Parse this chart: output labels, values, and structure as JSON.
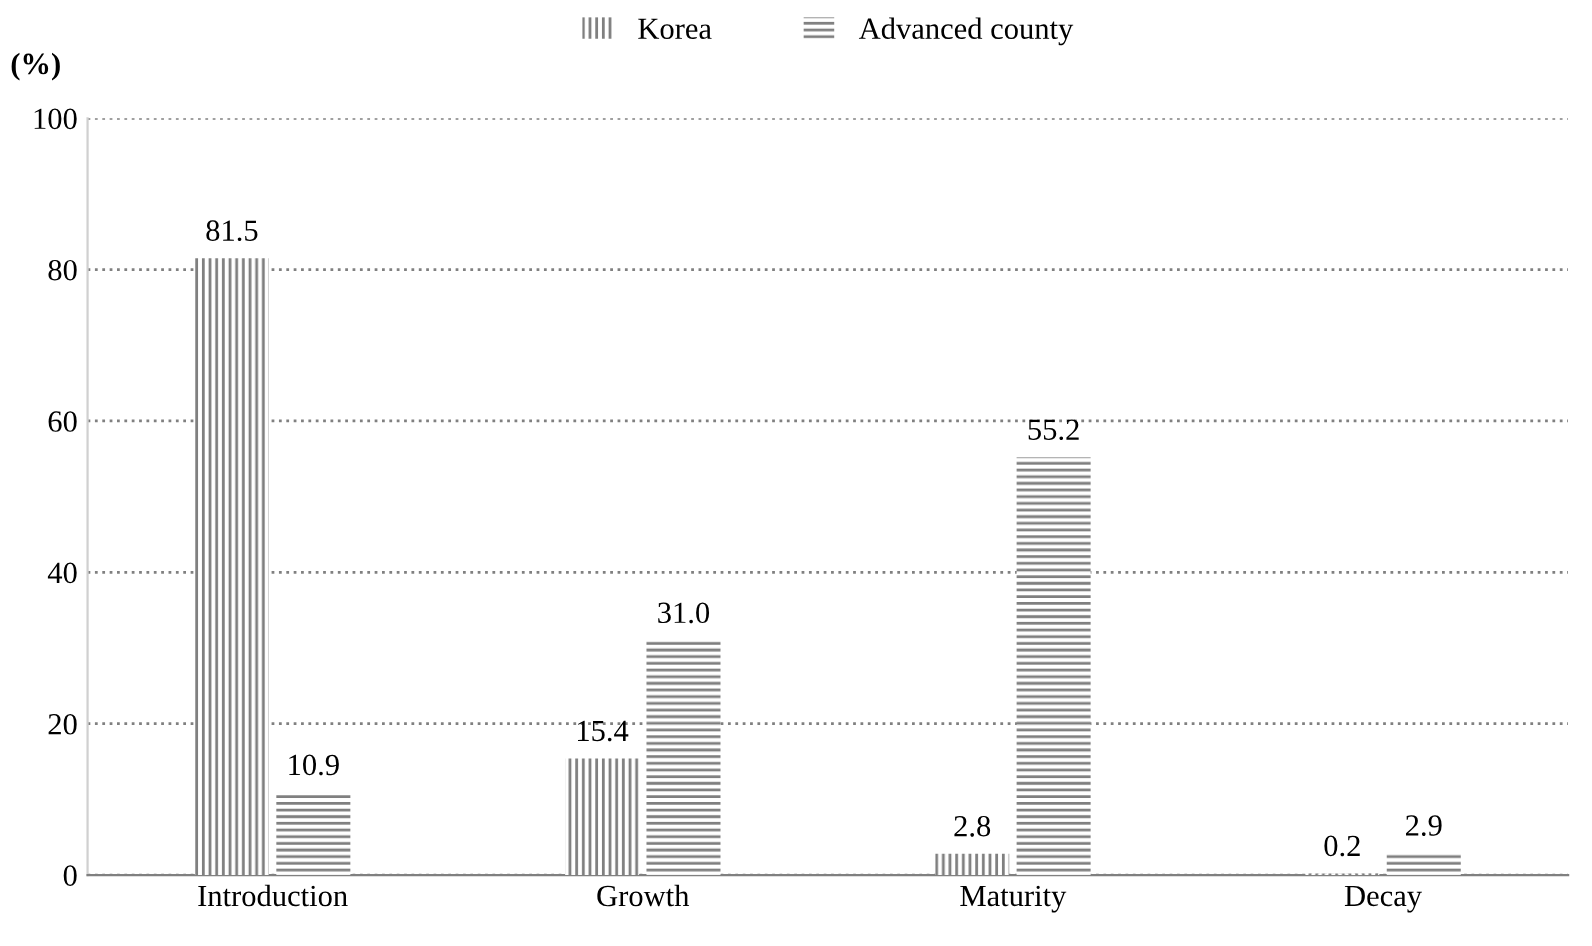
{
  "chart_data": {
    "type": "bar",
    "ylabel": "(%)",
    "categories": [
      "Introduction",
      "Growth",
      "Maturity",
      "Decay"
    ],
    "series": [
      {
        "name": "Korea",
        "color": "#7f7f7f",
        "values": [
          81.5,
          15.4,
          2.8,
          0.2
        ],
        "value_labels": [
          "81.5",
          "15.4",
          "2.8",
          "0.2"
        ]
      },
      {
        "name": "Advanced county",
        "color": "#7f7f7f",
        "values": [
          10.9,
          31.0,
          55.2,
          2.9
        ],
        "value_labels": [
          "10.9",
          "31.0",
          "55.2",
          "2.9"
        ]
      }
    ],
    "ylim": [
      0,
      100
    ],
    "yticks": [
      0,
      20,
      40,
      60,
      80,
      100
    ],
    "grid": "y",
    "legend": "top"
  }
}
